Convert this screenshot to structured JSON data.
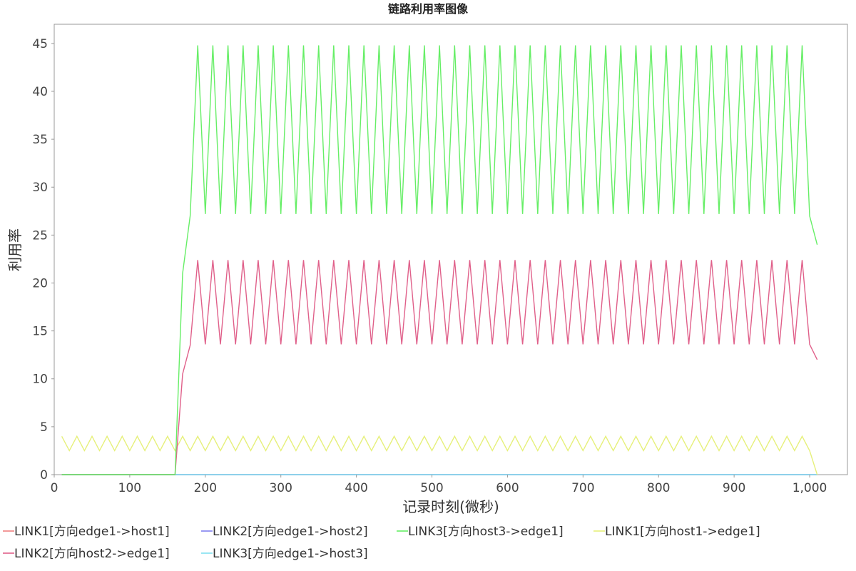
{
  "chart_data": {
    "type": "line",
    "title": "链路利用率图像",
    "xlabel": "记录时刻(微秒)",
    "ylabel": "利用率",
    "xlim": [
      0,
      1050
    ],
    "ylim": [
      0,
      47
    ],
    "x_ticks": [
      0,
      100,
      200,
      300,
      400,
      500,
      600,
      700,
      800,
      900,
      1000
    ],
    "x_tick_labels": [
      "0",
      "100",
      "200",
      "300",
      "400",
      "500",
      "600",
      "700",
      "800",
      "900",
      "1,000"
    ],
    "y_ticks": [
      0,
      5,
      10,
      15,
      20,
      25,
      30,
      35,
      40,
      45
    ],
    "y_tick_labels": [
      "0",
      "5",
      "10",
      "15",
      "20",
      "25",
      "30",
      "35",
      "40",
      "45"
    ],
    "grid": false,
    "legend_position": "bottom",
    "series": [
      {
        "name": "LINK1[方向edge1->host1]",
        "color": "#f08080",
        "pattern": "zero"
      },
      {
        "name": "LINK2[方向edge1->host2]",
        "color": "#8080f0",
        "pattern": "zero"
      },
      {
        "name": "LINK3[方向host3->edge1]",
        "color": "#66ee66",
        "pattern": "high"
      },
      {
        "name": "LINK1[方向host1->edge1]",
        "color": "#e6f07a",
        "pattern": "low"
      },
      {
        "name": "LINK2[方向host2->edge1]",
        "color": "#e0608a",
        "pattern": "mid"
      },
      {
        "name": "LINK3[方向edge1->host3]",
        "color": "#80e0f0",
        "pattern": "zero"
      }
    ],
    "pattern_values": {
      "start_x": 10,
      "step_x": 10,
      "end_x": 1010,
      "zero": {
        "value": 0
      },
      "low": {
        "peak": 4,
        "trough": 2.5,
        "final": 0
      },
      "mid": {
        "ramp": [
          [
            160,
            0
          ],
          [
            170,
            10.5
          ],
          [
            180,
            13.5
          ]
        ],
        "peak": 22.4,
        "trough": 13.6,
        "pre_final": 13.6,
        "final": 12
      },
      "high": {
        "ramp": [
          [
            160,
            0
          ],
          [
            170,
            21
          ],
          [
            180,
            27
          ]
        ],
        "peak": 44.8,
        "trough": 27.2,
        "pre_final": 27,
        "final": 24
      }
    }
  }
}
